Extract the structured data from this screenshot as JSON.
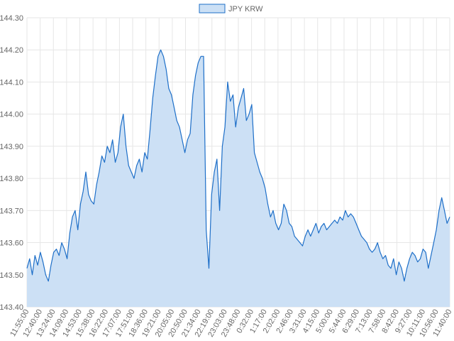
{
  "chart_data": {
    "type": "area",
    "legend": {
      "label": "JPY KRW",
      "position": "top-center"
    },
    "colors": {
      "line": "#1e6fc8",
      "fill": "#cce0f5",
      "grid": "#e6e6e6",
      "tick_text": "#666666"
    },
    "ylim": [
      143.4,
      144.3
    ],
    "y_ticks": [
      "144.30",
      "144.20",
      "144.10",
      "144.00",
      "143.90",
      "143.80",
      "143.70",
      "143.60",
      "143.50",
      "143.40"
    ],
    "x_ticks": [
      "11:55:00",
      "12:40:00",
      "13:24:00",
      "14:09:00",
      "14:53:00",
      "15:38:00",
      "16:22:00",
      "17:07:00",
      "17:51:00",
      "18:36:00",
      "19:21:00",
      "20:05:00",
      "20:50:00",
      "21:34:00",
      "22:19:00",
      "23:03:00",
      "23:48:00",
      "0:32:00",
      "1:17:00",
      "2:02:00",
      "2:46:00",
      "3:31:00",
      "4:15:00",
      "5:00:00",
      "5:44:00",
      "6:29:00",
      "7:13:00",
      "7:58:00",
      "8:42:00",
      "9:27:00",
      "10:11:00",
      "10:56:00",
      "11:40:00"
    ],
    "grid": true,
    "series": [
      {
        "name": "JPY KRW",
        "x_start": "11:55:00",
        "x_end": "11:40:00",
        "values": [
          143.52,
          143.55,
          143.5,
          143.56,
          143.53,
          143.57,
          143.54,
          143.5,
          143.48,
          143.53,
          143.57,
          143.58,
          143.56,
          143.6,
          143.58,
          143.55,
          143.63,
          143.68,
          143.7,
          143.64,
          143.72,
          143.76,
          143.82,
          143.75,
          143.73,
          143.72,
          143.78,
          143.82,
          143.87,
          143.85,
          143.9,
          143.88,
          143.92,
          143.85,
          143.88,
          143.96,
          144.0,
          143.9,
          143.84,
          143.82,
          143.8,
          143.84,
          143.86,
          143.82,
          143.88,
          143.86,
          143.95,
          144.05,
          144.12,
          144.18,
          144.2,
          144.18,
          144.14,
          144.08,
          144.06,
          144.02,
          143.98,
          143.96,
          143.92,
          143.88,
          143.92,
          143.94,
          144.06,
          144.12,
          144.16,
          144.18,
          144.18,
          143.64,
          143.52,
          143.75,
          143.82,
          143.86,
          143.7,
          143.9,
          143.96,
          144.1,
          144.04,
          144.06,
          143.96,
          144.02,
          144.05,
          144.08,
          143.98,
          144.0,
          144.03,
          143.88,
          143.85,
          143.82,
          143.8,
          143.77,
          143.72,
          143.68,
          143.7,
          143.66,
          143.64,
          143.66,
          143.72,
          143.7,
          143.66,
          143.65,
          143.62,
          143.61,
          143.6,
          143.59,
          143.62,
          143.64,
          143.62,
          143.64,
          143.66,
          143.63,
          143.65,
          143.66,
          143.64,
          143.65,
          143.66,
          143.67,
          143.66,
          143.68,
          143.67,
          143.7,
          143.68,
          143.69,
          143.68,
          143.66,
          143.64,
          143.62,
          143.61,
          143.6,
          143.58,
          143.57,
          143.58,
          143.6,
          143.57,
          143.55,
          143.56,
          143.53,
          143.52,
          143.55,
          143.5,
          143.54,
          143.52,
          143.48,
          143.52,
          143.55,
          143.57,
          143.56,
          143.54,
          143.55,
          143.58,
          143.57,
          143.52,
          143.56,
          143.6,
          143.64,
          143.7,
          143.74,
          143.7,
          143.66,
          143.68
        ]
      }
    ]
  }
}
